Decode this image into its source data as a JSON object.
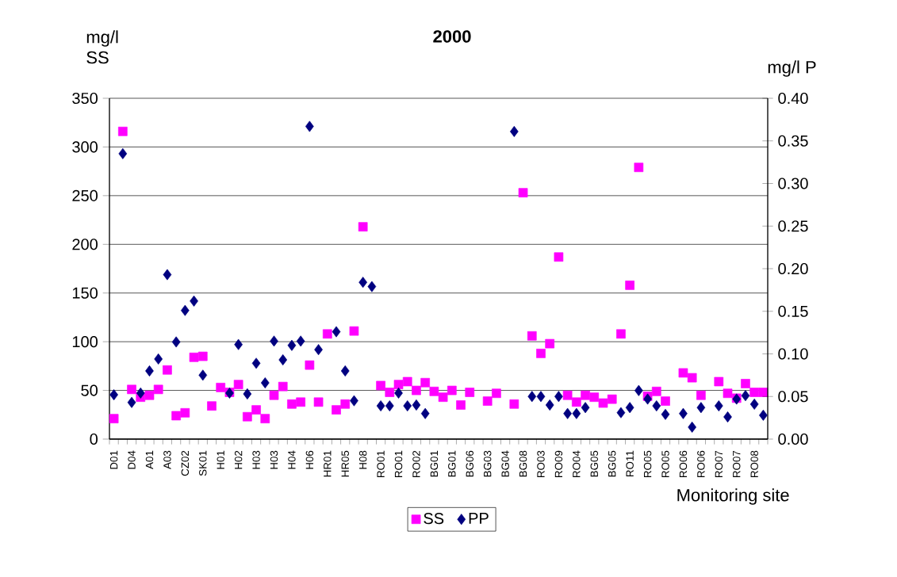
{
  "chart_data": {
    "type": "scatter",
    "title": "2000",
    "xlabel": "Monitoring site",
    "ylabel": "mg/l SS",
    "y2label": "mg/l P",
    "categories": [
      "D01",
      null,
      "D04",
      null,
      "A01",
      null,
      "A03",
      null,
      "CZ02",
      null,
      "SK01",
      null,
      "H01",
      null,
      "H02",
      null,
      "H03",
      null,
      "H03",
      null,
      "H04",
      null,
      "H06",
      null,
      "HR01",
      null,
      "HR05",
      null,
      "H08",
      null,
      "RO01",
      null,
      "RO01",
      null,
      "RO02",
      null,
      "BG01",
      null,
      "BG01",
      null,
      "BG06",
      null,
      "BG03",
      null,
      "BG04",
      null,
      "BG08",
      null,
      "RO03",
      null,
      "RO09",
      null,
      "RO04",
      null,
      "BG05",
      null,
      "BG05",
      null,
      "RO11",
      null,
      "RO05",
      null,
      "RO05",
      null,
      "RO06",
      null,
      "RO06",
      null,
      "RO07",
      null,
      "RO07",
      null,
      "RO08",
      null
    ],
    "series": [
      {
        "name": "SS",
        "color": "#ff00ff",
        "marker": "square",
        "values": [
          21,
          316,
          51,
          43,
          45,
          51,
          71,
          24,
          27,
          84,
          85,
          34,
          53,
          48,
          56,
          23,
          30,
          21,
          45,
          54,
          36,
          38,
          76,
          38,
          108,
          30,
          36,
          111,
          218,
          null,
          55,
          48,
          56,
          59,
          50,
          58,
          49,
          43,
          50,
          35,
          48,
          null,
          39,
          47,
          null,
          36,
          253,
          106,
          88,
          98,
          187,
          45,
          38,
          45,
          43,
          37,
          41,
          108,
          158,
          279,
          44,
          49,
          39,
          null,
          68,
          63,
          45,
          null,
          59,
          47,
          42,
          57,
          48,
          48
        ]
      },
      {
        "name": "PP",
        "color": "#000080",
        "marker": "diamond",
        "axis": "y2",
        "values": [
          0.052,
          0.335,
          0.043,
          0.054,
          0.08,
          0.094,
          0.193,
          0.114,
          0.151,
          0.162,
          0.075,
          null,
          null,
          0.054,
          0.111,
          0.053,
          0.089,
          0.066,
          0.115,
          0.093,
          0.11,
          0.115,
          0.367,
          0.105,
          null,
          0.126,
          0.08,
          0.045,
          0.184,
          0.179,
          0.039,
          0.039,
          0.054,
          0.039,
          0.04,
          0.03,
          null,
          null,
          null,
          null,
          null,
          null,
          null,
          null,
          null,
          0.361,
          null,
          0.05,
          0.05,
          0.04,
          0.05,
          0.03,
          0.03,
          0.037,
          null,
          null,
          null,
          0.031,
          0.037,
          0.057,
          0.047,
          0.039,
          0.029,
          null,
          0.03,
          0.014,
          0.037,
          null,
          0.039,
          0.026,
          0.047,
          0.051,
          0.041,
          0.028
        ]
      }
    ],
    "ylim": [
      0,
      350
    ],
    "yticks": [
      0,
      50,
      100,
      150,
      200,
      250,
      300,
      350
    ],
    "y2lim": [
      0,
      0.4
    ],
    "y2ticks": [
      {
        "value": 0,
        "label": "0.00"
      },
      {
        "value": 0.05,
        "label": "0.05"
      },
      {
        "value": 0.1,
        "label": "0.10"
      },
      {
        "value": 0.15,
        "label": "0.15"
      },
      {
        "value": 0.2,
        "label": "0.20"
      },
      {
        "value": 0.25,
        "label": "0.25"
      },
      {
        "value": 0.3,
        "label": "0.30"
      },
      {
        "value": 0.35,
        "label": "0.35"
      },
      {
        "value": 0.4,
        "label": "0.40"
      }
    ],
    "grid": "y",
    "legend": "bottom"
  }
}
